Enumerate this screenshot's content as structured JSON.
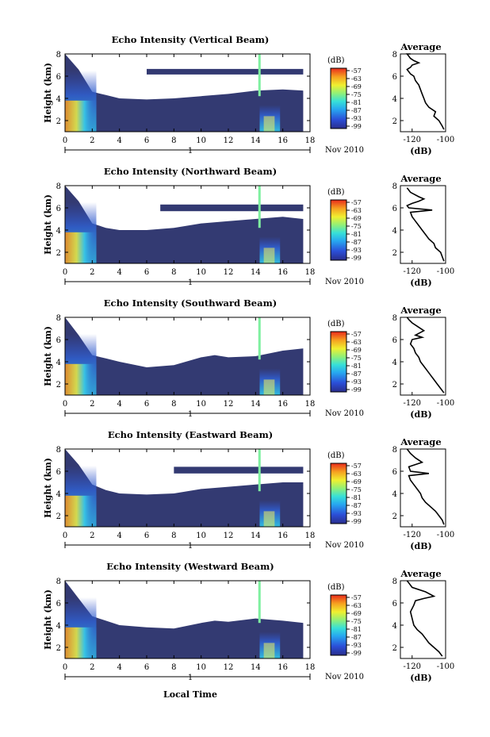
{
  "figure": {
    "xlabel": "Local Time",
    "date_label": "Nov 2010",
    "day_marker": "1",
    "colors": {
      "background_fill": "#333a72",
      "time_gap": "#7ff0a0",
      "line": "#000000"
    }
  },
  "chart_data": [
    {
      "type": "heatmap",
      "title": "Echo Intensity (Vertical Beam)",
      "ylabel": "Height (km)",
      "xlim": [
        0,
        18
      ],
      "ylim": [
        1,
        8
      ],
      "xticks": [
        0,
        2,
        4,
        6,
        8,
        10,
        12,
        14,
        16,
        18
      ],
      "yticks": [
        2,
        4,
        6,
        8
      ],
      "colorbar": {
        "unit": "(dB)",
        "ticks": [
          -57,
          -63,
          -69,
          -75,
          -81,
          -87,
          -93,
          -99
        ]
      },
      "echo_top_height_km": [
        [
          0,
          8
        ],
        [
          1,
          6.6
        ],
        [
          2,
          4.6
        ],
        [
          3,
          4.3
        ],
        [
          4,
          4.0
        ],
        [
          6,
          3.9
        ],
        [
          8,
          4.0
        ],
        [
          10,
          4.2
        ],
        [
          12,
          4.4
        ],
        [
          14,
          4.7
        ],
        [
          16,
          4.8
        ],
        [
          17.5,
          4.7
        ]
      ],
      "layers": [
        {
          "y": 6.4,
          "h": 0.5,
          "x0": 6,
          "x1": 17.5
        }
      ]
    },
    {
      "type": "line",
      "title": "Average",
      "xlabel": "(dB)",
      "xlim": [
        -127,
        -100
      ],
      "ylim": [
        1,
        8
      ],
      "xticks": [
        -120,
        -100
      ],
      "yticks": [
        2,
        4,
        6,
        8
      ],
      "x": [
        -101,
        -102,
        -104,
        -107,
        -106,
        -110,
        -112,
        -113,
        -114,
        -115,
        -116,
        -118,
        -119,
        -121,
        -122,
        -123,
        -121,
        -120,
        -116,
        -119,
        -121,
        -122,
        -123,
        -121
      ],
      "y": [
        1.2,
        1.5,
        2.0,
        2.4,
        2.8,
        3.2,
        3.6,
        4.0,
        4.4,
        4.8,
        5.2,
        5.6,
        6.0,
        6.2,
        6.4,
        6.6,
        6.8,
        7.0,
        7.2,
        7.4,
        7.6,
        7.8,
        8.0,
        8.0
      ]
    },
    {
      "type": "heatmap",
      "title": "Echo Intensity (Northward Beam)",
      "ylabel": "Height (km)",
      "xlim": [
        0,
        18
      ],
      "ylim": [
        1,
        8
      ],
      "xticks": [
        0,
        2,
        4,
        6,
        8,
        10,
        12,
        14,
        16,
        18
      ],
      "yticks": [
        2,
        4,
        6,
        8
      ],
      "colorbar": {
        "unit": "(dB)",
        "ticks": [
          -57,
          -63,
          -69,
          -75,
          -81,
          -87,
          -93,
          -99
        ]
      },
      "echo_top_height_km": [
        [
          0,
          8
        ],
        [
          1,
          6.6
        ],
        [
          2,
          4.6
        ],
        [
          3,
          4.2
        ],
        [
          4,
          4.0
        ],
        [
          6,
          4.0
        ],
        [
          8,
          4.2
        ],
        [
          10,
          4.6
        ],
        [
          12,
          4.8
        ],
        [
          14,
          5.0
        ],
        [
          16,
          5.2
        ],
        [
          17.5,
          5.0
        ]
      ],
      "layers": [
        {
          "y": 6.0,
          "h": 0.6,
          "x0": 7,
          "x1": 17.5
        }
      ]
    },
    {
      "type": "line",
      "title": "Average",
      "xlabel": "(dB)",
      "xlim": [
        -127,
        -100
      ],
      "ylim": [
        1,
        8
      ],
      "xticks": [
        -120,
        -100
      ],
      "yticks": [
        2,
        4,
        6,
        8
      ],
      "x": [
        -101,
        -102,
        -103,
        -106,
        -107,
        -110,
        -112,
        -114,
        -116,
        -118,
        -120,
        -121,
        -108,
        -122,
        -123,
        -120,
        -116,
        -113,
        -116,
        -121,
        -123
      ],
      "y": [
        1.2,
        1.6,
        2.0,
        2.4,
        2.8,
        3.2,
        3.6,
        4.0,
        4.4,
        4.8,
        5.2,
        5.6,
        5.8,
        6.0,
        6.2,
        6.4,
        6.6,
        6.8,
        7.0,
        7.4,
        7.8
      ]
    },
    {
      "type": "heatmap",
      "title": "Echo Intensity (Southward Beam)",
      "ylabel": "Height (km)",
      "xlim": [
        0,
        18
      ],
      "ylim": [
        1,
        8
      ],
      "xticks": [
        0,
        2,
        4,
        6,
        8,
        10,
        12,
        14,
        16,
        18
      ],
      "yticks": [
        2,
        4,
        6,
        8
      ],
      "colorbar": {
        "unit": "(dB)",
        "ticks": [
          -57,
          -63,
          -69,
          -75,
          -81,
          -87,
          -93,
          -99
        ]
      },
      "echo_top_height_km": [
        [
          0,
          8
        ],
        [
          1,
          6.4
        ],
        [
          2,
          4.6
        ],
        [
          3,
          4.3
        ],
        [
          4,
          4.0
        ],
        [
          6,
          3.5
        ],
        [
          8,
          3.7
        ],
        [
          10,
          4.4
        ],
        [
          11,
          4.6
        ],
        [
          12,
          4.4
        ],
        [
          14,
          4.5
        ],
        [
          16,
          5.0
        ],
        [
          17.5,
          5.2
        ]
      ],
      "layers": []
    },
    {
      "type": "line",
      "title": "Average",
      "xlabel": "(dB)",
      "xlim": [
        -127,
        -100
      ],
      "ylim": [
        1,
        8
      ],
      "xticks": [
        -120,
        -100
      ],
      "yticks": [
        2,
        4,
        6,
        8
      ],
      "x": [
        -101,
        -103,
        -105,
        -107,
        -109,
        -111,
        -113,
        -115,
        -116,
        -118,
        -119,
        -121,
        -120,
        -114,
        -118,
        -113,
        -117,
        -120,
        -122,
        -123
      ],
      "y": [
        1.2,
        1.6,
        2.0,
        2.4,
        2.8,
        3.2,
        3.6,
        4.0,
        4.4,
        4.8,
        5.2,
        5.6,
        6.0,
        6.2,
        6.4,
        6.8,
        7.2,
        7.5,
        7.8,
        8.0
      ]
    },
    {
      "type": "heatmap",
      "title": "Echo Intensity (Eastward Beam)",
      "ylabel": "Height (km)",
      "xlim": [
        0,
        18
      ],
      "ylim": [
        1,
        8
      ],
      "xticks": [
        0,
        2,
        4,
        6,
        8,
        10,
        12,
        14,
        16,
        18
      ],
      "yticks": [
        2,
        4,
        6,
        8
      ],
      "colorbar": {
        "unit": "(dB)",
        "ticks": [
          -57,
          -63,
          -69,
          -75,
          -81,
          -87,
          -93,
          -99
        ]
      },
      "echo_top_height_km": [
        [
          0,
          8
        ],
        [
          1,
          6.6
        ],
        [
          2,
          4.8
        ],
        [
          3,
          4.3
        ],
        [
          4,
          4.0
        ],
        [
          6,
          3.9
        ],
        [
          8,
          4.0
        ],
        [
          10,
          4.4
        ],
        [
          12,
          4.6
        ],
        [
          14,
          4.8
        ],
        [
          16,
          5.0
        ],
        [
          17.5,
          5.0
        ]
      ],
      "layers": [
        {
          "y": 6.1,
          "h": 0.6,
          "x0": 8,
          "x1": 17.5
        }
      ]
    },
    {
      "type": "line",
      "title": "Average",
      "xlabel": "(dB)",
      "xlim": [
        -127,
        -100
      ],
      "ylim": [
        1,
        8
      ],
      "xticks": [
        -120,
        -100
      ],
      "yticks": [
        2,
        4,
        6,
        8
      ],
      "x": [
        -101,
        -102,
        -104,
        -106,
        -109,
        -112,
        -114,
        -115,
        -117,
        -119,
        -121,
        -122,
        -110,
        -121,
        -122,
        -114,
        -118,
        -121,
        -123
      ],
      "y": [
        1.2,
        1.6,
        2.0,
        2.4,
        2.8,
        3.2,
        3.6,
        4.0,
        4.4,
        4.8,
        5.2,
        5.6,
        5.8,
        6.0,
        6.4,
        6.8,
        7.2,
        7.6,
        8.0
      ]
    },
    {
      "type": "heatmap",
      "title": "Echo Intensity (Westward Beam)",
      "ylabel": "Height (km)",
      "xlim": [
        0,
        18
      ],
      "ylim": [
        1,
        8
      ],
      "xticks": [
        0,
        2,
        4,
        6,
        8,
        10,
        12,
        14,
        16,
        18
      ],
      "yticks": [
        2,
        4,
        6,
        8
      ],
      "colorbar": {
        "unit": "(dB)",
        "ticks": [
          -57,
          -63,
          -69,
          -75,
          -81,
          -87,
          -93,
          -99
        ]
      },
      "echo_top_height_km": [
        [
          0,
          8
        ],
        [
          1,
          6.4
        ],
        [
          2,
          4.8
        ],
        [
          3,
          4.4
        ],
        [
          4,
          4.0
        ],
        [
          6,
          3.8
        ],
        [
          8,
          3.7
        ],
        [
          10,
          4.2
        ],
        [
          11,
          4.4
        ],
        [
          12,
          4.3
        ],
        [
          14,
          4.6
        ],
        [
          16,
          4.4
        ],
        [
          17.5,
          4.2
        ]
      ],
      "layers": []
    },
    {
      "type": "line",
      "title": "Average",
      "xlabel": "(dB)",
      "xlim": [
        -127,
        -100
      ],
      "ylim": [
        1,
        8
      ],
      "xticks": [
        -120,
        -100
      ],
      "yticks": [
        2,
        4,
        6,
        8
      ],
      "x": [
        -102,
        -104,
        -107,
        -110,
        -112,
        -114,
        -117,
        -119,
        -120,
        -121,
        -119,
        -118,
        -113,
        -107,
        -112,
        -120,
        -122,
        -123
      ],
      "y": [
        1.2,
        1.6,
        2.0,
        2.4,
        2.8,
        3.2,
        3.6,
        4.0,
        4.6,
        5.2,
        5.8,
        6.2,
        6.4,
        6.6,
        7.0,
        7.4,
        7.8,
        8.0
      ]
    }
  ]
}
